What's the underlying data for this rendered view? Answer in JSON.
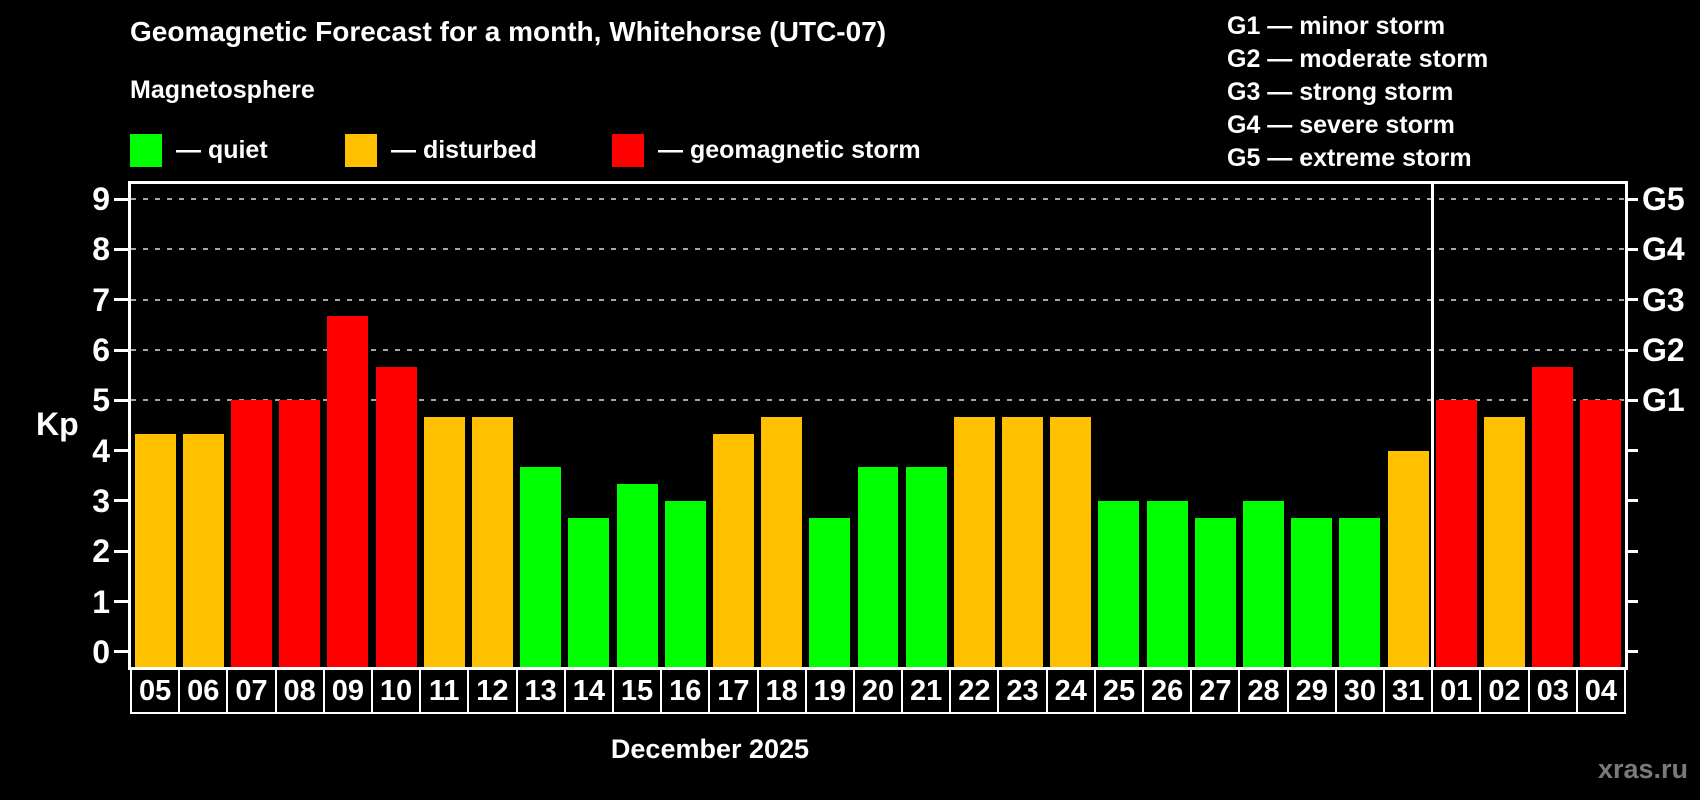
{
  "header": {
    "title": "Geomagnetic Forecast for a month, Whitehorse (UTC-07)",
    "subtitle": "Magnetosphere"
  },
  "legend": {
    "items": [
      {
        "status": "quiet",
        "label": "— quiet"
      },
      {
        "status": "disturbed",
        "label": "— disturbed"
      },
      {
        "status": "storm",
        "label": "— geomagnetic storm"
      }
    ]
  },
  "g_scale_legend": [
    "G1 — minor storm",
    "G2 — moderate storm",
    "G3 — strong storm",
    "G4 — severe storm",
    "G5 — extreme storm"
  ],
  "colors": {
    "quiet": "#00ff00",
    "disturbed": "#ffc000",
    "storm": "#ff0000",
    "axis": "#ffffff",
    "grid": "#a6a6a6",
    "background": "#000000",
    "watermark": "#7a7a7a"
  },
  "watermark": "xras.ru",
  "chart_data": {
    "type": "bar",
    "title": "Geomagnetic Forecast for a month, Whitehorse (UTC-07)",
    "xlabel": "December 2025",
    "ylabel": "Kp",
    "ylim": [
      0,
      9
    ],
    "y_ticks": [
      0,
      1,
      2,
      3,
      4,
      5,
      6,
      7,
      8,
      9
    ],
    "gridlines_at": [
      5,
      6,
      7,
      8,
      9
    ],
    "grid": "dashed",
    "legend_position": "top",
    "categories": [
      "05",
      "06",
      "07",
      "08",
      "09",
      "10",
      "11",
      "12",
      "13",
      "14",
      "15",
      "16",
      "17",
      "18",
      "19",
      "20",
      "21",
      "22",
      "23",
      "24",
      "25",
      "26",
      "27",
      "28",
      "29",
      "30",
      "31",
      "01",
      "02",
      "03",
      "04"
    ],
    "values": [
      4.33,
      4.33,
      5,
      5,
      6.67,
      5.67,
      4.67,
      4.67,
      3.67,
      2.67,
      3.33,
      3,
      4.33,
      4.67,
      2.67,
      3.67,
      3.67,
      4.67,
      4.67,
      4.67,
      3,
      3,
      2.67,
      3,
      2.67,
      2.67,
      4,
      5,
      4.67,
      5.67,
      5
    ],
    "statuses": [
      "disturbed",
      "disturbed",
      "storm",
      "storm",
      "storm",
      "storm",
      "disturbed",
      "disturbed",
      "quiet",
      "quiet",
      "quiet",
      "quiet",
      "disturbed",
      "disturbed",
      "quiet",
      "quiet",
      "quiet",
      "disturbed",
      "disturbed",
      "disturbed",
      "quiet",
      "quiet",
      "quiet",
      "quiet",
      "quiet",
      "quiet",
      "disturbed",
      "storm",
      "disturbed",
      "storm",
      "storm"
    ],
    "right_axis": [
      {
        "label": "G5",
        "kp": 9
      },
      {
        "label": "G4",
        "kp": 8
      },
      {
        "label": "G3",
        "kp": 7
      },
      {
        "label": "G2",
        "kp": 6
      },
      {
        "label": "G1",
        "kp": 5
      }
    ],
    "month_boundary_index": 27
  }
}
